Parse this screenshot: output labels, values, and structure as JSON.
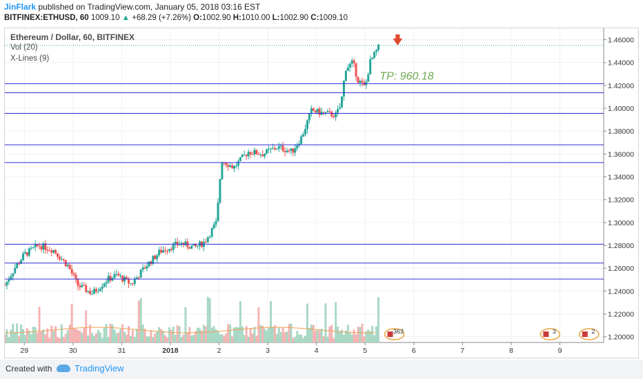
{
  "header": {
    "author": "JinFlark",
    "published": "published on TradingView.com, January 05, 2018 03:16 EST",
    "symbol": "BITFINEX:ETHUSD, 60",
    "price": "1009.10",
    "change": "+68.29 (+7.26%)",
    "o_label": "O:",
    "o_value": "1002.90",
    "h_label": "H:",
    "h_value": "1010.00",
    "l_label": "L:",
    "l_value": "1002.90",
    "c_label": "C:",
    "c_value": "1009.10"
  },
  "legend": {
    "title": "Ethereum / Dollar, 60, BITFINEX",
    "vol": "Vol (20)",
    "xlines": "X-Lines (9)"
  },
  "footer": {
    "created": "Created with",
    "brand": "TradingView"
  },
  "colors": {
    "up": "#26a69a",
    "down": "#ef5350",
    "line": "#2b2bd6",
    "tp": "#6aa84f",
    "vol_up": "#a8d8c4",
    "vol_down": "#f4b4b4"
  },
  "chart_data": {
    "type": "candlestick",
    "y_axis": {
      "ticks": [
        "1.46000",
        "1.44000",
        "1.42000",
        "1.40000",
        "1.38000",
        "1.36000",
        "1.34000",
        "1.32000",
        "1.30000",
        "1.28000",
        "1.26000",
        "1.24000",
        "1.22000",
        "1.20000"
      ],
      "range": [
        1.195,
        1.47
      ]
    },
    "x_axis": {
      "range": [
        28.6,
        9.9
      ],
      "ticks": [
        {
          "label": "29",
          "pos": 29.0
        },
        {
          "label": "30",
          "pos": 30.0
        },
        {
          "label": "31",
          "pos": 31.0
        },
        {
          "label": "2018",
          "pos": 32.0
        },
        {
          "label": "2",
          "pos": 33.0
        },
        {
          "label": "3",
          "pos": 34.0
        },
        {
          "label": "4",
          "pos": 35.0
        },
        {
          "label": "5",
          "pos": 36.0
        },
        {
          "label": "6",
          "pos": 37.0
        },
        {
          "label": "7",
          "pos": 38.0
        },
        {
          "label": "8",
          "pos": 39.0
        },
        {
          "label": "9",
          "pos": 40.0
        }
      ]
    },
    "horizontal_lines": [
      1.4215,
      1.4135,
      1.3955,
      1.368,
      1.3525,
      1.281,
      1.2645,
      1.2505
    ],
    "price_path": [
      [
        28.6,
        1.245
      ],
      [
        28.8,
        1.26
      ],
      [
        29.0,
        1.272
      ],
      [
        29.3,
        1.28
      ],
      [
        29.6,
        1.276
      ],
      [
        29.9,
        1.262
      ],
      [
        30.1,
        1.245
      ],
      [
        30.4,
        1.238
      ],
      [
        30.7,
        1.25
      ],
      [
        30.9,
        1.254
      ],
      [
        31.2,
        1.246
      ],
      [
        31.5,
        1.262
      ],
      [
        31.8,
        1.275
      ],
      [
        32.2,
        1.282
      ],
      [
        32.5,
        1.278
      ],
      [
        32.7,
        1.283
      ],
      [
        32.95,
        1.3
      ],
      [
        33.05,
        1.355
      ],
      [
        33.3,
        1.348
      ],
      [
        33.6,
        1.362
      ],
      [
        33.9,
        1.36
      ],
      [
        34.2,
        1.366
      ],
      [
        34.5,
        1.362
      ],
      [
        34.7,
        1.375
      ],
      [
        34.9,
        1.398
      ],
      [
        35.1,
        1.396
      ],
      [
        35.4,
        1.394
      ],
      [
        35.5,
        1.402
      ],
      [
        35.6,
        1.435
      ],
      [
        35.75,
        1.44
      ],
      [
        35.85,
        1.425
      ],
      [
        36.0,
        1.418
      ],
      [
        36.1,
        1.44
      ],
      [
        36.3,
        1.455
      ]
    ],
    "annotations": [
      {
        "text": "TP: 960.18",
        "at": [
          36.3,
          1.425
        ]
      }
    ],
    "event_badges": [
      {
        "text": "363",
        "pos": 36.6
      },
      {
        "text": "3",
        "pos": 39.8
      },
      {
        "text": "2",
        "pos": 40.6
      }
    ],
    "volume_indicator": "Vol (20)"
  }
}
